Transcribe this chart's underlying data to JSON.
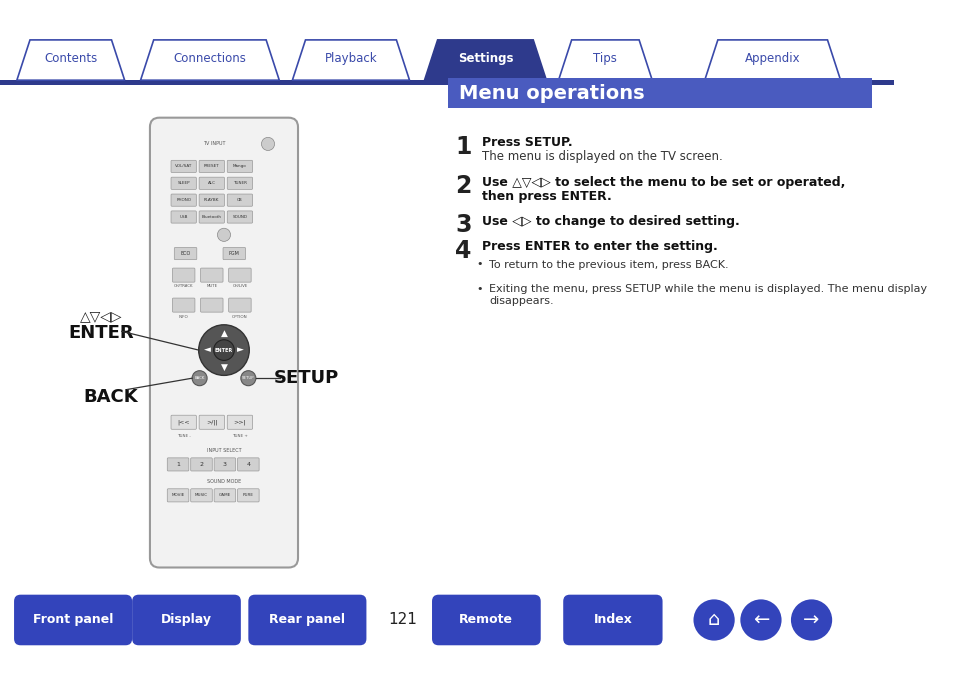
{
  "bg_color": "#ffffff",
  "tab_bar_color": "#2e3a8c",
  "tab_labels": [
    "Contents",
    "Connections",
    "Playback",
    "Settings",
    "Tips",
    "Appendix"
  ],
  "active_tab": 3,
  "tab_active_bg": "#2e3a8c",
  "tab_active_fg": "#ffffff",
  "tab_inactive_bg": "#ffffff",
  "tab_inactive_fg": "#3a4aaa",
  "tab_border_color": "#3a4aaa",
  "section_title": "Menu operations",
  "section_title_bg": "#4a5bbf",
  "section_title_fg": "#ffffff",
  "steps": [
    {
      "num": "1",
      "bold": "Press SETUP.",
      "normal": "The menu is displayed on the TV screen."
    },
    {
      "num": "2",
      "bold": "Use △▽◁▷ to select the menu to be set or operated,\nthen press ENTER.",
      "normal": ""
    },
    {
      "num": "3",
      "bold": "Use ◁▷ to change to desired setting.",
      "normal": ""
    },
    {
      "num": "4",
      "bold": "Press ENTER to enter the setting.",
      "normal": ""
    }
  ],
  "bullets": [
    "To return to the previous item, press BACK.",
    "Exiting the menu, press SETUP while the menu is displayed. The menu display disappears."
  ],
  "bottom_buttons": [
    "Front panel",
    "Display",
    "Rear panel",
    "Remote",
    "Index"
  ],
  "page_num": "121",
  "bottom_btn_color": "#3344bb",
  "bottom_btn_fg": "#ffffff",
  "arrow_label_enter": "ENTER",
  "arrow_label_back": "BACK",
  "arrow_label_setup": "SETUP",
  "arrow_label_dirs": "△▽◁▷"
}
